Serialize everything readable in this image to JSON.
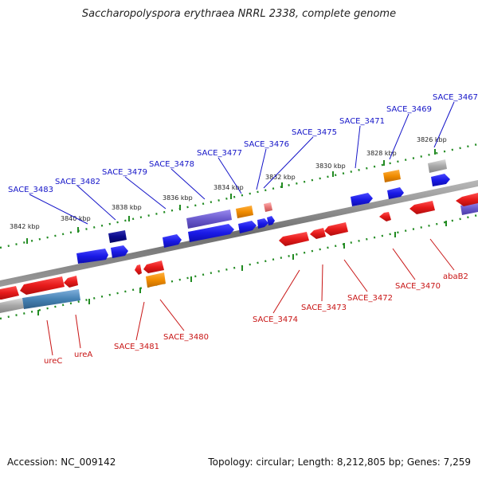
{
  "title": "Saccharopolyspora erythraea NRRL 2338, complete genome",
  "footer": {
    "accession": "Accession: NC_009142",
    "summary": "Topology: circular; Length: 8,212,805 bp; Genes: 7,259"
  },
  "scale_labels": [
    "3842 kbp",
    "3840 kbp",
    "3838 kbp",
    "3836 kbp",
    "3834 kbp",
    "3832 kbp",
    "3830 kbp",
    "3828 kbp",
    "3826 kbp"
  ],
  "forward_genes": [
    "SACE_3483",
    "SACE_3482",
    "SACE_3479",
    "SACE_3478",
    "SACE_3477",
    "SACE_3476",
    "SACE_3475",
    "SACE_3471",
    "SACE_3469",
    "SACE_3467"
  ],
  "reverse_genes": [
    "ureC",
    "ureA",
    "SACE_3481",
    "SACE_3480",
    "SACE_3474",
    "SACE_3473",
    "SACE_3472",
    "SACE_3470",
    "abaB2"
  ],
  "colors": {
    "forward_label": "#1414c8",
    "reverse_label": "#c81414",
    "cds_blue": "#1a1ae6",
    "cds_red": "#e61a1a",
    "cds_orange": "#f08c00",
    "cds_purple": "#6a5acd",
    "cds_navy": "#0a0a8c",
    "cds_grey": "#a8a8a8",
    "cds_steel": "#4682b4",
    "cds_pink": "#e87878",
    "backbone": "#7a7a7a",
    "scale_dots": "#228b22"
  }
}
